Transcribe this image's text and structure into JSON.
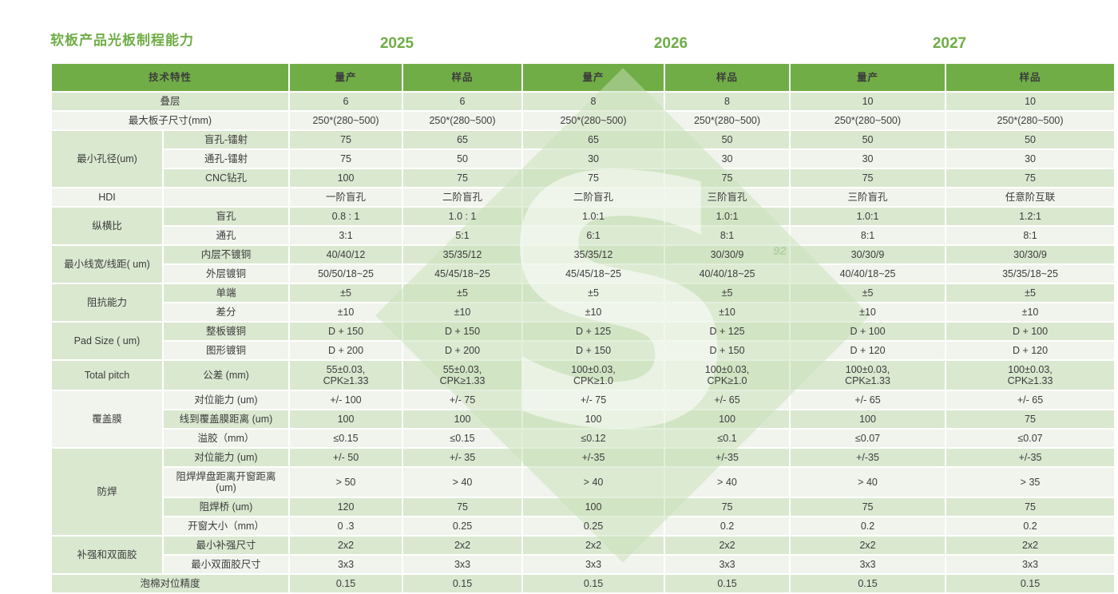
{
  "title": "软板产品光板制程能力",
  "years": {
    "y2025": "2025",
    "y2026": "2026",
    "y2027": "2027"
  },
  "colors": {
    "header_green": "#71AD47",
    "title_green": "#6FAD47",
    "stripe_green": "#DAE8D0",
    "stripe_light": "#F0F4EC",
    "text": "#3C3C3C",
    "watermark_green": "#C8E0B8"
  },
  "watermark": {
    "letter": "S",
    "faint_text": "92"
  },
  "table": {
    "header": {
      "feature": "技术特性",
      "cols": [
        "量产",
        "样品",
        "量产",
        "样品",
        "量产",
        "样品"
      ]
    },
    "rows": [
      {
        "label": "叠层",
        "span2": true,
        "values": [
          "6",
          "6",
          "8",
          "8",
          "10",
          "10"
        ]
      },
      {
        "label": "最大板子尺寸(mm)",
        "span2": true,
        "values": [
          "250*(280~500)",
          "250*(280~500)",
          "250*(280~500)",
          "250*(280~500)",
          "250*(280~500)",
          "250*(280~500)"
        ]
      },
      {
        "group": "最小孔径(um)",
        "group_rows": 3,
        "label": "盲孔-镭射",
        "values": [
          "75",
          "65",
          "65",
          "50",
          "50",
          "50"
        ]
      },
      {
        "label": "通孔-镭射",
        "values": [
          "75",
          "50",
          "30",
          "30",
          "30",
          "30"
        ]
      },
      {
        "label": "CNC钻孔",
        "values": [
          "100",
          "75",
          "75",
          "75",
          "75",
          "75"
        ]
      },
      {
        "group": "HDI",
        "group_rows": 1,
        "label": "",
        "values": [
          "一阶盲孔",
          "二阶盲孔",
          "二阶盲孔",
          "三阶盲孔",
          "三阶盲孔",
          "任意阶互联"
        ]
      },
      {
        "group": "纵横比",
        "group_rows": 2,
        "label": "盲孔",
        "values": [
          "0.8 : 1",
          "1.0 : 1",
          "1.0:1",
          "1.0:1",
          "1.0:1",
          "1.2:1"
        ]
      },
      {
        "label": "通孔",
        "values": [
          "3:1",
          "5:1",
          "6:1",
          "8:1",
          "8:1",
          "8:1"
        ]
      },
      {
        "group": "最小线宽/线距( um)",
        "group_rows": 2,
        "label": "内层不镀铜",
        "values": [
          "40/40/12",
          "35/35/12",
          "35/35/12",
          "30/30/9",
          "30/30/9",
          "30/30/9"
        ]
      },
      {
        "label": "外层镀铜",
        "values": [
          "50/50/18~25",
          "45/45/18~25",
          "45/45/18~25",
          "40/40/18~25",
          "40/40/18~25",
          "35/35/18~25"
        ]
      },
      {
        "group": "阻抗能力",
        "group_rows": 2,
        "label": "单端",
        "values": [
          "±5",
          "±5",
          "±5",
          "±5",
          "±5",
          "±5"
        ]
      },
      {
        "label": "差分",
        "values": [
          "±10",
          "±10",
          "±10",
          "±10",
          "±10",
          "±10"
        ]
      },
      {
        "group": "Pad Size ( um)",
        "group_rows": 2,
        "label": "整板镀铜",
        "values": [
          "D + 150",
          "D + 150",
          "D + 125",
          "D + 125",
          "D + 100",
          "D + 100"
        ]
      },
      {
        "label": "图形镀铜",
        "values": [
          "D + 200",
          "D + 200",
          "D + 150",
          "D + 150",
          "D + 120",
          "D + 120"
        ]
      },
      {
        "group": "Total pitch",
        "group_rows": 1,
        "label": "公差 (mm)",
        "tall": true,
        "values": [
          "55±0.03,\nCPK≥1.33",
          "55±0.03,\nCPK≥1.33",
          "100±0.03,\nCPK≥1.0",
          "100±0.03,\nCPK≥1.0",
          "100±0.03,\nCPK≥1.33",
          "100±0.03,\nCPK≥1.33"
        ]
      },
      {
        "group": "覆盖膜",
        "group_rows": 3,
        "label": "对位能力 (um)",
        "values": [
          "+/- 100",
          "+/- 75",
          "+/- 75",
          "+/- 65",
          "+/- 65",
          "+/- 65"
        ]
      },
      {
        "label": "线到覆盖膜距离 (um)",
        "values": [
          "100",
          "100",
          "100",
          "100",
          "100",
          "75"
        ]
      },
      {
        "label": "溢胶（mm）",
        "values": [
          "≤0.15",
          "≤0.15",
          "≤0.12",
          "≤0.1",
          "≤0.07",
          "≤0.07"
        ]
      },
      {
        "group": "防焊",
        "group_rows": 4,
        "label": "对位能力 (um)",
        "values": [
          "+/- 50",
          "+/- 35",
          "+/-35",
          "+/-35",
          "+/-35",
          "+/-35"
        ]
      },
      {
        "label": "阻焊焊盘距离开窗距离\n(um)",
        "tall": true,
        "values": [
          "> 50",
          "> 40",
          "> 40",
          "> 40",
          "> 40",
          "> 35"
        ]
      },
      {
        "label": "阻焊桥 (um)",
        "values": [
          "120",
          "75",
          "100",
          "75",
          "75",
          "75"
        ]
      },
      {
        "label": "开窗大小（mm）",
        "values": [
          "0 .3",
          "0.25",
          "0.25",
          "0.2",
          "0.2",
          "0.2"
        ]
      },
      {
        "group": "补强和双面胶",
        "group_rows": 2,
        "label": "最小补强尺寸",
        "values": [
          "2x2",
          "2x2",
          "2x2",
          "2x2",
          "2x2",
          "2x2"
        ]
      },
      {
        "label": "最小双面胶尺寸",
        "values": [
          "3x3",
          "3x3",
          "3x3",
          "3x3",
          "3x3",
          "3x3"
        ]
      },
      {
        "label": "泡棉对位精度",
        "span2": true,
        "values": [
          "0.15",
          "0.15",
          "0.15",
          "0.15",
          "0.15",
          "0.15"
        ]
      }
    ]
  }
}
